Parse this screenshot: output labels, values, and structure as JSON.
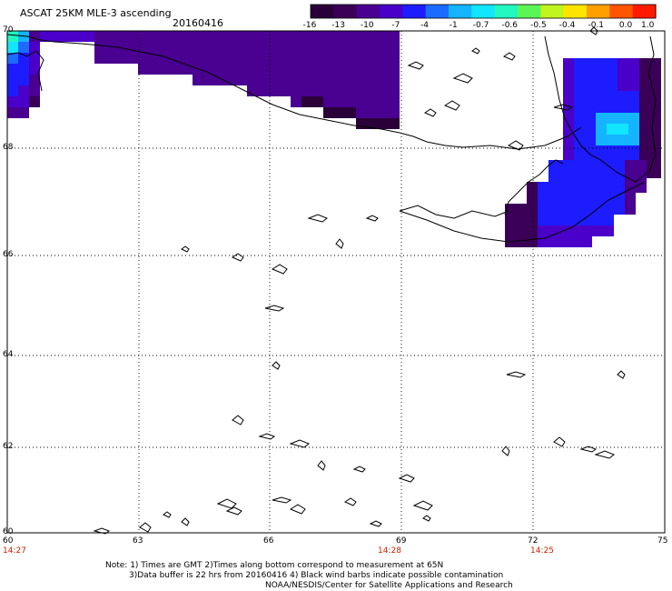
{
  "header": {
    "title": "ASCAT 25KM MLE-3 ascending",
    "date": "20160416"
  },
  "colorbar": {
    "ticks": [
      "-16",
      "-13",
      "-10",
      "-7",
      "-4",
      "-1",
      "-0.7",
      "-0.6",
      "-0.5",
      "-0.4",
      "-0.1",
      "0.0",
      "1.0"
    ],
    "colors": [
      "#2a0038",
      "#3a0058",
      "#4a0090",
      "#4a00c8",
      "#1c1cff",
      "#1b6bff",
      "#14b4ff",
      "#12e6ff",
      "#22f7c0",
      "#5cf556",
      "#c0f41e",
      "#ffe400",
      "#ffa000",
      "#ff5500",
      "#ff1a00"
    ]
  },
  "axes": {
    "y_ticks": [
      "70",
      "68",
      "66",
      "64",
      "62",
      "60"
    ],
    "x_ticks": [
      "60",
      "63",
      "66",
      "69",
      "72",
      "75"
    ]
  },
  "pass_times": [
    "14:27",
    "14:28",
    "14:25"
  ],
  "notes": {
    "line1": "Note: 1) Times are GMT 2)Times along bottom correspond to measurement at 65N",
    "line2": "3)Data buffer is 22 hrs from 20160416 4) Black wind barbs indicate possible contamination",
    "line3": "NOAA/NESDIS/Center for Satellite Applications and Research"
  },
  "swaths": [
    {
      "region": "northwest-coast",
      "colors": [
        "#22f7c0",
        "#1c1cff",
        "#4a00c8",
        "#2a0038"
      ]
    },
    {
      "region": "north-coast",
      "colors": [
        "#4a0090",
        "#3a0058",
        "#2a0038"
      ]
    },
    {
      "region": "east-coast",
      "colors": [
        "#1c1cff",
        "#1b6bff",
        "#14b4ff",
        "#12e6ff",
        "#4a0090",
        "#2a0038"
      ]
    }
  ]
}
